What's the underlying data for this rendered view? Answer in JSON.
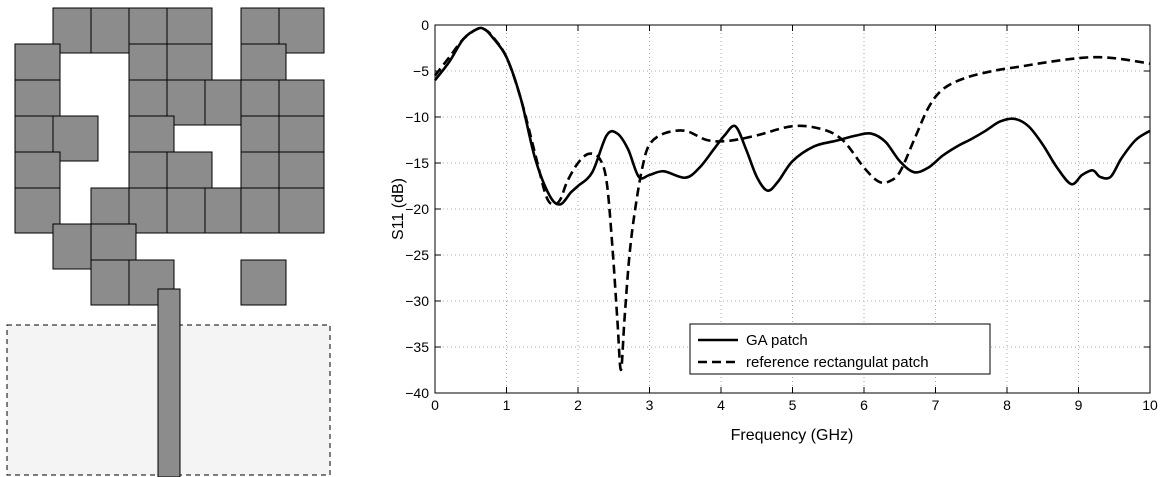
{
  "patch_layout": {
    "fill_color": "#8c8c8c",
    "substrate_fill": "#f4f4f4",
    "substrate_border": "dashed"
  },
  "chart_data": {
    "type": "line",
    "xlabel": "Frequency (GHz)",
    "ylabel": "S11 (dB)",
    "xlim": [
      0,
      10
    ],
    "ylim": [
      -40,
      0
    ],
    "xticks": [
      0,
      1,
      2,
      3,
      4,
      5,
      6,
      7,
      8,
      9,
      10
    ],
    "yticks": [
      0,
      -5,
      -10,
      -15,
      -20,
      -25,
      -30,
      -35,
      -40
    ],
    "grid": true,
    "legend_position": "bottom-center",
    "series": [
      {
        "name": "GA patch",
        "style": "solid",
        "color": "#000000",
        "x": [
          0,
          0.2,
          0.4,
          0.6,
          0.7,
          0.8,
          1.0,
          1.2,
          1.4,
          1.6,
          1.75,
          1.9,
          2.0,
          2.2,
          2.4,
          2.55,
          2.7,
          2.85,
          3.0,
          3.2,
          3.5,
          3.7,
          3.9,
          4.05,
          4.2,
          4.35,
          4.5,
          4.65,
          4.8,
          5.0,
          5.3,
          5.6,
          5.9,
          6.1,
          6.3,
          6.5,
          6.7,
          6.9,
          7.1,
          7.3,
          7.5,
          7.7,
          7.9,
          8.1,
          8.3,
          8.5,
          8.7,
          8.9,
          9.05,
          9.2,
          9.3,
          9.45,
          9.6,
          9.8,
          10.0
        ],
        "y": [
          -6.0,
          -4.0,
          -1.5,
          -0.4,
          -0.5,
          -1.3,
          -3.5,
          -8.0,
          -14.5,
          -18.5,
          -19.5,
          -18.2,
          -17.5,
          -16.0,
          -12.0,
          -11.8,
          -13.5,
          -16.5,
          -16.3,
          -15.9,
          -16.6,
          -15.5,
          -13.5,
          -12.0,
          -11.0,
          -13.5,
          -16.5,
          -18.0,
          -17.0,
          -14.8,
          -13.2,
          -12.6,
          -12.0,
          -11.8,
          -12.7,
          -14.8,
          -16.0,
          -15.5,
          -14.2,
          -13.2,
          -12.4,
          -11.5,
          -10.5,
          -10.2,
          -11.0,
          -13.0,
          -15.5,
          -17.3,
          -16.3,
          -15.8,
          -16.5,
          -16.5,
          -14.5,
          -12.5,
          -11.5
        ]
      },
      {
        "name": "reference rectangulat patch",
        "style": "dashed",
        "color": "#000000",
        "x": [
          0,
          0.2,
          0.4,
          0.6,
          0.7,
          0.8,
          1.0,
          1.2,
          1.4,
          1.55,
          1.65,
          1.75,
          1.85,
          2.0,
          2.15,
          2.3,
          2.4,
          2.48,
          2.55,
          2.6,
          2.65,
          2.72,
          2.8,
          2.9,
          3.0,
          3.2,
          3.5,
          3.8,
          4.1,
          4.5,
          5.0,
          5.4,
          5.7,
          6.0,
          6.2,
          6.35,
          6.5,
          6.7,
          6.9,
          7.1,
          7.4,
          7.8,
          8.2,
          8.6,
          9.0,
          9.3,
          9.6,
          10.0
        ],
        "y": [
          -5.5,
          -3.5,
          -1.5,
          -0.4,
          -0.5,
          -1.2,
          -3.5,
          -8.0,
          -14.0,
          -18.5,
          -19.5,
          -19.0,
          -17.0,
          -15.0,
          -14.0,
          -14.5,
          -17.0,
          -24.0,
          -32.0,
          -37.5,
          -32.0,
          -25.0,
          -20.0,
          -15.5,
          -13.0,
          -11.8,
          -11.5,
          -12.5,
          -12.6,
          -12.0,
          -11.0,
          -11.3,
          -12.5,
          -15.5,
          -17.0,
          -17.0,
          -16.0,
          -12.5,
          -9.0,
          -7.0,
          -5.8,
          -5.0,
          -4.5,
          -4.0,
          -3.6,
          -3.5,
          -3.7,
          -4.2
        ]
      }
    ]
  }
}
